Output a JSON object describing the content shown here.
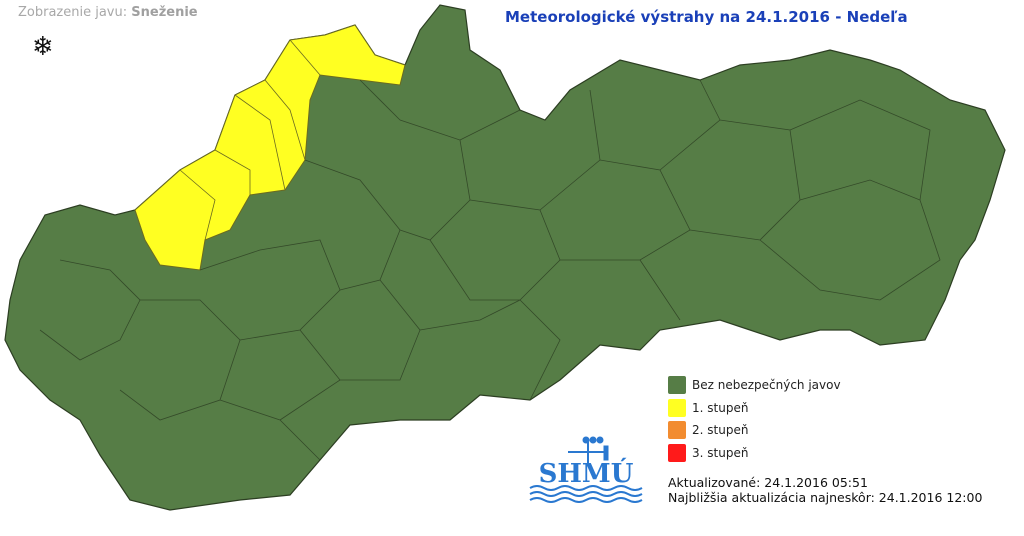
{
  "header": {
    "phenomenon_label": "Zobrazenie javu:",
    "phenomenon_value": "Sneženie",
    "phenomenon_icon": "snowflake-icon",
    "title": "Meteorologické výstrahy na 24.1.2016 - Nedeľa"
  },
  "legend": [
    {
      "label": "Bez nebezpečných javov",
      "color": "#567d46"
    },
    {
      "label": "1. stupeň",
      "color": "#ffff22"
    },
    {
      "label": "2. stupeň",
      "color": "#f28c30"
    },
    {
      "label": "3. stupeň",
      "color": "#ff1a1a"
    }
  ],
  "logo": {
    "text": "SHMÚ",
    "color": "#2a78d0"
  },
  "update": {
    "updated": "Aktualizované: 24.1.2016 05:51",
    "next": "Najbližšia aktualizácia najneskôr: 24.1.2016 12:00"
  },
  "map": {
    "country": "Slovakia",
    "warning_regions": "northwest districts level 1"
  }
}
